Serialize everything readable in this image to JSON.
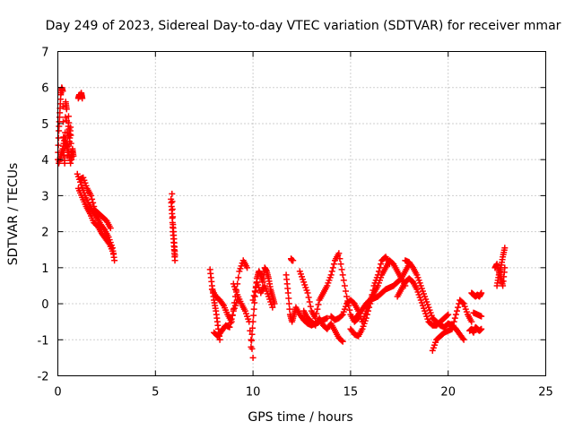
{
  "chart_data": {
    "type": "scatter",
    "title": "Day 249 of 2023, Sidereal Day-to-day VTEC variation (SDTVAR) for receiver mmar",
    "xlabel": "GPS time / hours",
    "ylabel": "SDTVAR / TECUs",
    "xlim": [
      0,
      25
    ],
    "ylim": [
      -2,
      7
    ],
    "x_ticks": [
      0,
      5,
      10,
      15,
      20,
      25
    ],
    "y_ticks": [
      -2,
      -1,
      0,
      1,
      2,
      3,
      4,
      5,
      6,
      7
    ],
    "grid": true,
    "marker": "+",
    "series": [
      {
        "name": "SDTVAR",
        "color": "#ff0000",
        "segments": [
          {
            "x": [
              0.0,
              0.05,
              0.1,
              0.15,
              0.2,
              0.25,
              0.3,
              0.35,
              0.4,
              0.45,
              0.5,
              0.55,
              0.6,
              0.65,
              0.7,
              0.75,
              0.8
            ],
            "y": [
              4.0,
              4.8,
              5.3,
              5.8,
              6.0,
              5.9,
              4.2,
              3.9,
              5.6,
              5.4,
              4.1,
              5.2,
              4.5,
              4.9,
              4.0,
              4.3,
              4.1
            ]
          },
          {
            "x": [
              0.05,
              0.15,
              0.25,
              0.35,
              0.45,
              0.55,
              0.65
            ],
            "y": [
              3.9,
              4.1,
              4.3,
              4.6,
              4.4,
              4.2,
              3.9
            ]
          },
          {
            "x": [
              1.05,
              1.1,
              1.15,
              1.2,
              1.25
            ],
            "y": [
              5.7,
              5.8,
              5.75,
              5.85,
              5.7
            ]
          },
          {
            "x": [
              1.0,
              1.2,
              1.4,
              1.6,
              1.8,
              2.0,
              2.2,
              2.4,
              2.6,
              2.8,
              2.9
            ],
            "y": [
              3.6,
              3.3,
              3.0,
              2.75,
              2.55,
              2.4,
              2.2,
              2.05,
              1.85,
              1.55,
              1.2
            ]
          },
          {
            "x": [
              1.05,
              1.25,
              1.45,
              1.65,
              1.85,
              2.05,
              2.25,
              2.45,
              2.65,
              2.85
            ],
            "y": [
              3.2,
              2.95,
              2.7,
              2.5,
              2.25,
              2.15,
              1.95,
              1.8,
              1.65,
              1.4
            ]
          },
          {
            "x": [
              1.1,
              1.3,
              1.5,
              1.7,
              1.9,
              2.1,
              2.3,
              2.5,
              2.7
            ],
            "y": [
              3.45,
              3.5,
              3.2,
              3.0,
              2.6,
              2.5,
              2.4,
              2.3,
              2.1
            ]
          },
          {
            "x": [
              5.8,
              5.85,
              5.9,
              5.95,
              6.0
            ],
            "y": [
              2.9,
              2.5,
              2.0,
              1.6,
              1.2
            ]
          },
          {
            "x": [
              5.85,
              5.9,
              5.95,
              6.0
            ],
            "y": [
              3.05,
              2.2,
              1.8,
              1.35
            ]
          },
          {
            "x": [
              7.8,
              7.9,
              8.0,
              8.1,
              8.2,
              8.3
            ],
            "y": [
              0.95,
              0.5,
              0.1,
              -0.2,
              -0.6,
              -1.0
            ]
          },
          {
            "x": [
              7.9,
              8.1,
              8.3,
              8.5,
              8.7,
              8.9,
              9.1,
              9.3,
              9.5,
              9.7
            ],
            "y": [
              0.4,
              0.2,
              0.1,
              -0.05,
              -0.3,
              -0.5,
              0.2,
              0.9,
              1.2,
              1.0
            ]
          },
          {
            "x": [
              8.0,
              8.2,
              8.4,
              8.6,
              8.8,
              9.0,
              9.2
            ],
            "y": [
              -0.8,
              -0.9,
              -0.75,
              -0.6,
              -0.65,
              -0.2,
              0.1
            ]
          },
          {
            "x": [
              9.0,
              9.2,
              9.4,
              9.6,
              9.8,
              10.0
            ],
            "y": [
              0.55,
              0.25,
              0.0,
              -0.2,
              -0.5,
              -1.5
            ]
          },
          {
            "x": [
              9.9,
              10.0,
              10.1,
              10.2,
              10.3,
              10.4,
              10.5,
              10.6,
              10.7,
              10.8,
              10.9,
              11.0,
              11.1
            ],
            "y": [
              -1.2,
              -0.5,
              0.2,
              0.7,
              0.9,
              0.8,
              0.6,
              1.0,
              0.9,
              0.7,
              0.4,
              0.2,
              0.0
            ]
          },
          {
            "x": [
              10.0,
              10.2,
              10.4,
              10.6,
              10.8,
              11.0
            ],
            "y": [
              0.1,
              0.6,
              0.3,
              0.5,
              0.2,
              -0.1
            ]
          },
          {
            "x": [
              11.7,
              11.8,
              11.9,
              12.0,
              12.1,
              12.2,
              12.4,
              12.6,
              12.8,
              13.0,
              13.2,
              13.4,
              13.6,
              13.8
            ],
            "y": [
              0.8,
              0.3,
              -0.3,
              -0.5,
              -0.3,
              -0.1,
              -0.3,
              -0.45,
              -0.55,
              -0.6,
              -0.55,
              -0.5,
              -0.45,
              -0.4
            ]
          },
          {
            "x": [
              11.95,
              12.0,
              12.05
            ],
            "y": [
              1.25,
              1.2,
              1.2
            ]
          },
          {
            "x": [
              12.4,
              12.6,
              12.8,
              13.0,
              13.2,
              13.4,
              13.6,
              13.8,
              14.0,
              14.2,
              14.4,
              14.6,
              14.8,
              15.0,
              15.2,
              15.4
            ],
            "y": [
              0.9,
              0.6,
              0.3,
              -0.2,
              -0.4,
              0.1,
              0.3,
              0.5,
              0.8,
              1.2,
              1.4,
              0.8,
              0.2,
              -0.3,
              -0.5,
              -0.4
            ]
          },
          {
            "x": [
              12.6,
              12.8,
              13.0,
              13.2,
              13.4,
              13.6,
              13.8,
              14.0,
              14.2,
              14.4,
              14.6
            ],
            "y": [
              -0.2,
              -0.4,
              -0.5,
              -0.6,
              -0.4,
              -0.6,
              -0.7,
              -0.55,
              -0.75,
              -0.95,
              -1.05
            ]
          },
          {
            "x": [
              14.0,
              14.2,
              14.4,
              14.6,
              14.8,
              15.0,
              15.2,
              15.4,
              15.6,
              15.8,
              16.0,
              16.2,
              16.4,
              16.6,
              16.8,
              17.0,
              17.2,
              17.4,
              17.6,
              17.8
            ],
            "y": [
              -0.35,
              -0.45,
              -0.4,
              -0.3,
              0.0,
              0.1,
              0.0,
              -0.2,
              -0.5,
              -0.2,
              0.1,
              0.3,
              0.5,
              0.8,
              1.0,
              1.2,
              1.1,
              0.9,
              0.7,
              0.5
            ]
          },
          {
            "x": [
              15.0,
              15.2,
              15.4,
              15.6,
              15.8,
              16.0,
              16.2,
              16.4,
              16.6,
              16.8,
              17.0
            ],
            "y": [
              -0.7,
              -0.85,
              -0.9,
              -0.7,
              -0.4,
              0.0,
              0.5,
              0.8,
              1.2,
              1.3,
              1.1
            ]
          },
          {
            "x": [
              15.2,
              15.4,
              15.6,
              15.8,
              16.0,
              16.2,
              16.4,
              16.6,
              16.8,
              17.0,
              17.2,
              17.4,
              17.6,
              17.8,
              18.0
            ],
            "y": [
              -0.45,
              -0.3,
              -0.15,
              0.0,
              0.1,
              0.15,
              0.2,
              0.3,
              0.4,
              0.45,
              0.5,
              0.6,
              0.7,
              0.9,
              1.1
            ]
          },
          {
            "x": [
              17.8,
              18.0,
              18.2,
              18.4,
              18.6,
              18.8,
              19.0,
              19.2,
              19.4,
              19.6,
              19.8,
              20.0,
              20.2,
              20.4,
              20.6,
              20.8
            ],
            "y": [
              1.2,
              1.15,
              1.0,
              0.8,
              0.5,
              0.2,
              -0.1,
              -0.4,
              -0.5,
              -0.6,
              -0.65,
              -0.55,
              -0.6,
              -0.7,
              -0.85,
              -1.0
            ]
          },
          {
            "x": [
              17.4,
              17.6,
              17.8,
              18.0,
              18.2,
              18.4,
              18.6,
              18.8,
              19.0,
              19.2,
              19.4,
              19.6,
              19.8,
              20.0
            ],
            "y": [
              0.2,
              0.4,
              0.6,
              0.7,
              0.6,
              0.4,
              0.1,
              -0.2,
              -0.5,
              -0.6,
              -0.6,
              -0.5,
              -0.4,
              -0.3
            ]
          },
          {
            "x": [
              19.2,
              19.4,
              19.6,
              19.8,
              20.0,
              20.2,
              20.4,
              20.6,
              20.8,
              21.0,
              21.2
            ],
            "y": [
              -1.3,
              -1.0,
              -0.9,
              -0.8,
              -0.75,
              -0.7,
              -0.3,
              0.1,
              0.0,
              -0.3,
              -0.5
            ]
          },
          {
            "x": [
              21.1,
              21.2,
              21.3,
              21.4,
              21.5,
              21.6,
              21.7
            ],
            "y": [
              -0.75,
              -0.7,
              -0.8,
              -0.65,
              -0.7,
              -0.75,
              -0.7
            ]
          },
          {
            "x": [
              21.2,
              21.3,
              21.4,
              21.5,
              21.6,
              21.7
            ],
            "y": [
              0.3,
              0.25,
              0.2,
              0.25,
              0.2,
              0.3
            ]
          },
          {
            "x": [
              21.3,
              21.5,
              21.7
            ],
            "y": [
              -0.25,
              -0.3,
              -0.35
            ]
          },
          {
            "x": [
              22.5,
              22.6,
              22.7,
              22.8,
              22.9
            ],
            "y": [
              0.5,
              0.8,
              1.0,
              1.3,
              1.55
            ]
          },
          {
            "x": [
              22.4,
              22.5,
              22.6,
              22.7,
              22.8,
              22.9
            ],
            "y": [
              1.0,
              1.1,
              0.9,
              0.7,
              0.5,
              1.0
            ]
          }
        ]
      }
    ]
  }
}
